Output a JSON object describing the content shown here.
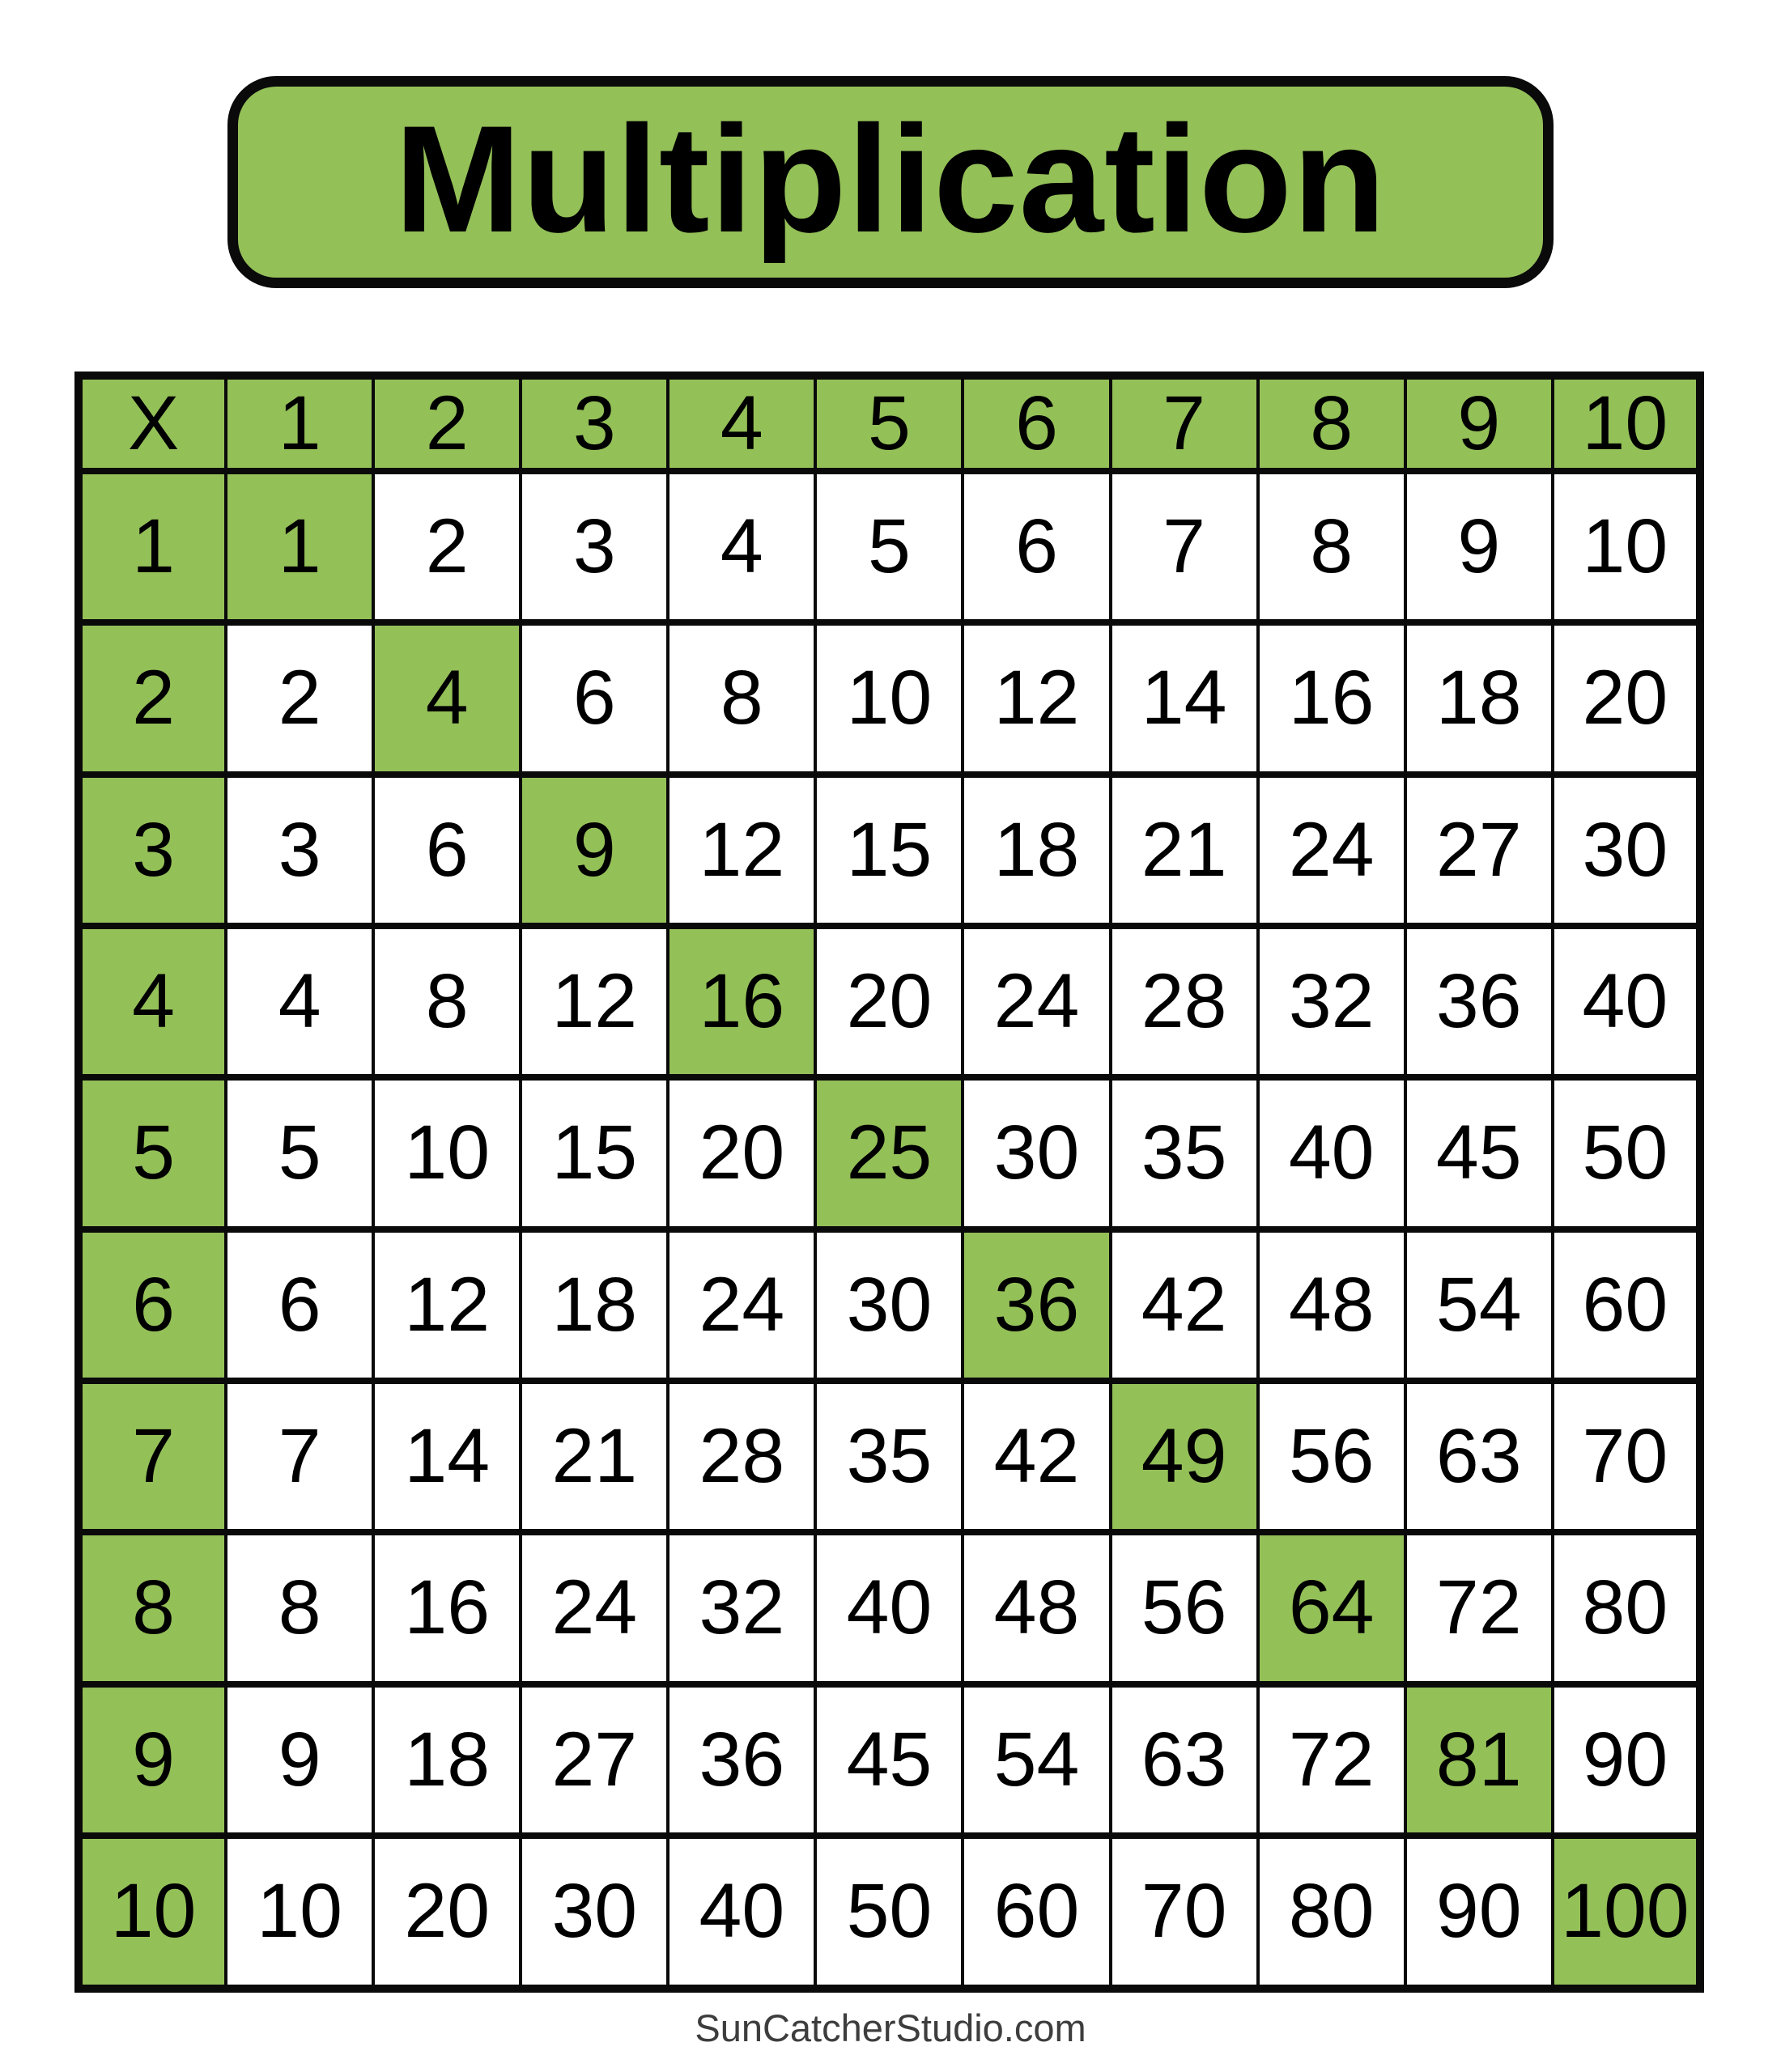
{
  "title": "Multiplication",
  "footer": {
    "text": "SunCatcherStudio.com"
  },
  "colors": {
    "accent_green": "#94c058",
    "grid_line": "#0a0a0a",
    "footer_text": "#3d3d3d"
  },
  "table": {
    "header": [
      "X",
      "1",
      "2",
      "3",
      "4",
      "5",
      "6",
      "7",
      "8",
      "9",
      "10"
    ],
    "rows": [
      {
        "header": "1",
        "values": [
          1,
          2,
          3,
          4,
          5,
          6,
          7,
          8,
          9,
          10
        ]
      },
      {
        "header": "2",
        "values": [
          2,
          4,
          6,
          8,
          10,
          12,
          14,
          16,
          18,
          20
        ]
      },
      {
        "header": "3",
        "values": [
          3,
          6,
          9,
          12,
          15,
          18,
          21,
          24,
          27,
          30
        ]
      },
      {
        "header": "4",
        "values": [
          4,
          8,
          12,
          16,
          20,
          24,
          28,
          32,
          36,
          40
        ]
      },
      {
        "header": "5",
        "values": [
          5,
          10,
          15,
          20,
          25,
          30,
          35,
          40,
          45,
          50
        ]
      },
      {
        "header": "6",
        "values": [
          6,
          12,
          18,
          24,
          30,
          36,
          42,
          48,
          54,
          60
        ]
      },
      {
        "header": "7",
        "values": [
          7,
          14,
          21,
          28,
          35,
          42,
          49,
          56,
          63,
          70
        ]
      },
      {
        "header": "8",
        "values": [
          8,
          16,
          24,
          32,
          40,
          48,
          56,
          64,
          72,
          80
        ]
      },
      {
        "header": "9",
        "values": [
          9,
          18,
          27,
          36,
          45,
          54,
          63,
          72,
          81,
          90
        ]
      },
      {
        "header": "10",
        "values": [
          10,
          20,
          30,
          40,
          50,
          60,
          70,
          80,
          90,
          100
        ]
      }
    ],
    "diagonal_highlighted": true
  }
}
